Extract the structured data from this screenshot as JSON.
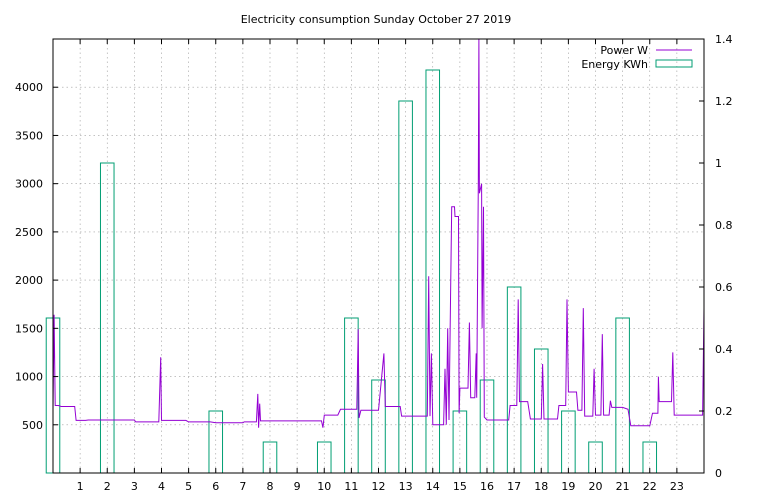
{
  "chart_data": {
    "type": "line",
    "title": "Electricity consumption Sunday October 27 2019",
    "x_ticks": [
      "1",
      "2",
      "3",
      "4",
      "5",
      "6",
      "7",
      "8",
      "9",
      "10",
      "11",
      "12",
      "13",
      "14",
      "15",
      "16",
      "17",
      "18",
      "19",
      "20",
      "21",
      "22",
      "23"
    ],
    "xlim": [
      0,
      24
    ],
    "y_left": {
      "ticks": [
        "500",
        "1000",
        "1500",
        "2000",
        "2500",
        "3000",
        "3500",
        "4000"
      ],
      "ylim": [
        0,
        4500
      ]
    },
    "y_right": {
      "ticks": [
        "0",
        "0.2",
        "0.4",
        "0.6",
        "0.8",
        "1",
        "1.2",
        "1.4"
      ],
      "ylim": [
        0,
        1.4
      ]
    },
    "grid": true,
    "legend_position": "top-right",
    "colors": {
      "power": "#9400d3",
      "energy": "#009e73"
    },
    "series": [
      {
        "name": "Power W",
        "axis": "left",
        "points": [
          [
            0.0,
            650
          ],
          [
            0.04,
            1640
          ],
          [
            0.08,
            700
          ],
          [
            0.2,
            700
          ],
          [
            0.3,
            690
          ],
          [
            0.8,
            690
          ],
          [
            0.85,
            545
          ],
          [
            1.2,
            545
          ],
          [
            1.3,
            550
          ],
          [
            2.0,
            550
          ],
          [
            3.0,
            550
          ],
          [
            3.05,
            530
          ],
          [
            3.5,
            530
          ],
          [
            3.9,
            530
          ],
          [
            3.97,
            1200
          ],
          [
            4.0,
            545
          ],
          [
            4.5,
            545
          ],
          [
            4.9,
            545
          ],
          [
            5.0,
            530
          ],
          [
            5.8,
            530
          ],
          [
            6.0,
            520
          ],
          [
            6.5,
            520
          ],
          [
            7.0,
            520
          ],
          [
            7.05,
            530
          ],
          [
            7.5,
            530
          ],
          [
            7.55,
            820
          ],
          [
            7.58,
            470
          ],
          [
            7.62,
            720
          ],
          [
            7.65,
            540
          ],
          [
            8.0,
            540
          ],
          [
            8.5,
            540
          ],
          [
            9.0,
            540
          ],
          [
            9.5,
            540
          ],
          [
            9.9,
            540
          ],
          [
            9.95,
            470
          ],
          [
            10.0,
            600
          ],
          [
            10.5,
            600
          ],
          [
            10.6,
            660
          ],
          [
            11.0,
            660
          ],
          [
            11.2,
            660
          ],
          [
            11.25,
            1490
          ],
          [
            11.28,
            570
          ],
          [
            11.35,
            650
          ],
          [
            12.0,
            650
          ],
          [
            12.2,
            1240
          ],
          [
            12.25,
            690
          ],
          [
            12.8,
            690
          ],
          [
            12.85,
            590
          ],
          [
            13.5,
            590
          ],
          [
            13.8,
            590
          ],
          [
            13.85,
            2040
          ],
          [
            13.9,
            590
          ],
          [
            13.95,
            1240
          ],
          [
            14.0,
            500
          ],
          [
            14.4,
            500
          ],
          [
            14.45,
            1080
          ],
          [
            14.5,
            500
          ],
          [
            14.55,
            1500
          ],
          [
            14.6,
            550
          ],
          [
            14.65,
            1700
          ],
          [
            14.7,
            2760
          ],
          [
            14.8,
            2760
          ],
          [
            14.82,
            2660
          ],
          [
            14.95,
            2660
          ],
          [
            14.97,
            620
          ],
          [
            15.0,
            880
          ],
          [
            15.3,
            880
          ],
          [
            15.35,
            1560
          ],
          [
            15.4,
            780
          ],
          [
            15.55,
            780
          ],
          [
            15.6,
            1240
          ],
          [
            15.62,
            780
          ],
          [
            15.68,
            3000
          ],
          [
            15.7,
            4500
          ],
          [
            15.72,
            2900
          ],
          [
            15.8,
            3000
          ],
          [
            15.82,
            1500
          ],
          [
            15.87,
            2760
          ],
          [
            15.9,
            580
          ],
          [
            16.0,
            550
          ],
          [
            16.5,
            550
          ],
          [
            16.8,
            550
          ],
          [
            16.85,
            700
          ],
          [
            17.1,
            700
          ],
          [
            17.15,
            1800
          ],
          [
            17.2,
            740
          ],
          [
            17.5,
            740
          ],
          [
            17.6,
            560
          ],
          [
            18.0,
            560
          ],
          [
            18.05,
            1130
          ],
          [
            18.1,
            560
          ],
          [
            18.6,
            560
          ],
          [
            18.65,
            700
          ],
          [
            18.9,
            700
          ],
          [
            18.95,
            1800
          ],
          [
            19.0,
            840
          ],
          [
            19.3,
            840
          ],
          [
            19.35,
            650
          ],
          [
            19.5,
            650
          ],
          [
            19.55,
            1710
          ],
          [
            19.6,
            590
          ],
          [
            19.9,
            590
          ],
          [
            19.95,
            1080
          ],
          [
            20.0,
            600
          ],
          [
            20.2,
            600
          ],
          [
            20.25,
            1440
          ],
          [
            20.3,
            600
          ],
          [
            20.5,
            600
          ],
          [
            20.55,
            750
          ],
          [
            20.6,
            680
          ],
          [
            21.0,
            680
          ],
          [
            21.2,
            660
          ],
          [
            21.3,
            490
          ],
          [
            21.8,
            490
          ],
          [
            22.0,
            490
          ],
          [
            22.1,
            620
          ],
          [
            22.3,
            620
          ],
          [
            22.32,
            1000
          ],
          [
            22.35,
            740
          ],
          [
            22.8,
            740
          ],
          [
            22.85,
            1250
          ],
          [
            22.9,
            600
          ],
          [
            23.5,
            600
          ],
          [
            23.95,
            600
          ],
          [
            24.0,
            1710
          ]
        ]
      },
      {
        "name": "Energy KWh",
        "axis": "right",
        "bars": [
          [
            0,
            0.5
          ],
          [
            2,
            1.0
          ],
          [
            3,
            0
          ],
          [
            4,
            0
          ],
          [
            5,
            0
          ],
          [
            6,
            0.2
          ],
          [
            7,
            0
          ],
          [
            8,
            0.1
          ],
          [
            9,
            0
          ],
          [
            10,
            0.1
          ],
          [
            11,
            0.5
          ],
          [
            12,
            0.3
          ],
          [
            13,
            1.2
          ],
          [
            14,
            1.3
          ],
          [
            15,
            0.2
          ],
          [
            16,
            0.3
          ],
          [
            17,
            0.6
          ],
          [
            18,
            0.4
          ],
          [
            19,
            0.2
          ],
          [
            20,
            0.1
          ],
          [
            21,
            0.5
          ],
          [
            22,
            0.1
          ],
          [
            23,
            0
          ]
        ]
      }
    ]
  }
}
